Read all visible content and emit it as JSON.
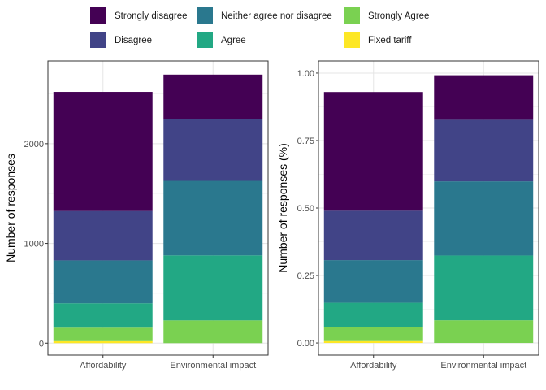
{
  "legend": {
    "items": [
      {
        "label": "Strongly disagree",
        "color": "#440154"
      },
      {
        "label": "Neither agree nor disagree",
        "color": "#2A788E"
      },
      {
        "label": "Strongly Agree",
        "color": "#7AD151"
      },
      {
        "label": "Disagree",
        "color": "#414487"
      },
      {
        "label": "Agree",
        "color": "#22A884"
      },
      {
        "label": "Fixed tariff",
        "color": "#FDE725"
      }
    ]
  },
  "chart_data": [
    {
      "type": "bar",
      "stacked": true,
      "categories": [
        "Affordability",
        "Environmental impact"
      ],
      "xlabel": "",
      "ylabel": "Number of responses",
      "ylim": [
        -120,
        2830
      ],
      "yticks": [
        0,
        1000,
        2000
      ],
      "tick_labels": [
        "0",
        "1000",
        "2000"
      ],
      "grid": true,
      "series": [
        {
          "name": "Strongly disagree",
          "values": [
            1195,
            447
          ]
        },
        {
          "name": "Disagree",
          "values": [
            495,
            618
          ]
        },
        {
          "name": "Neither agree nor disagree",
          "values": [
            430,
            748
          ]
        },
        {
          "name": "Agree",
          "values": [
            245,
            652
          ]
        },
        {
          "name": "Strongly Agree",
          "values": [
            135,
            228
          ]
        },
        {
          "name": "Fixed tariff",
          "values": [
            20,
            0
          ]
        }
      ]
    },
    {
      "type": "bar",
      "stacked": true,
      "categories": [
        "Affordability",
        "Environmental impact"
      ],
      "xlabel": "",
      "ylabel": "Number of responses (%)",
      "ylim": [
        -0.045,
        1.045
      ],
      "yticks": [
        0,
        0.25,
        0.5,
        0.75,
        1.0
      ],
      "tick_labels": [
        "0.00",
        "0.25",
        "0.50",
        "0.75",
        "1.00"
      ],
      "grid": true,
      "series": [
        {
          "name": "Strongly disagree",
          "values": [
            0.44,
            0.165
          ]
        },
        {
          "name": "Disagree",
          "values": [
            0.183,
            0.228
          ]
        },
        {
          "name": "Neither agree nor disagree",
          "values": [
            0.158,
            0.275
          ]
        },
        {
          "name": "Agree",
          "values": [
            0.09,
            0.24
          ]
        },
        {
          "name": "Strongly Agree",
          "values": [
            0.052,
            0.084
          ]
        },
        {
          "name": "Fixed tariff",
          "values": [
            0.007,
            0.0
          ]
        }
      ]
    }
  ]
}
